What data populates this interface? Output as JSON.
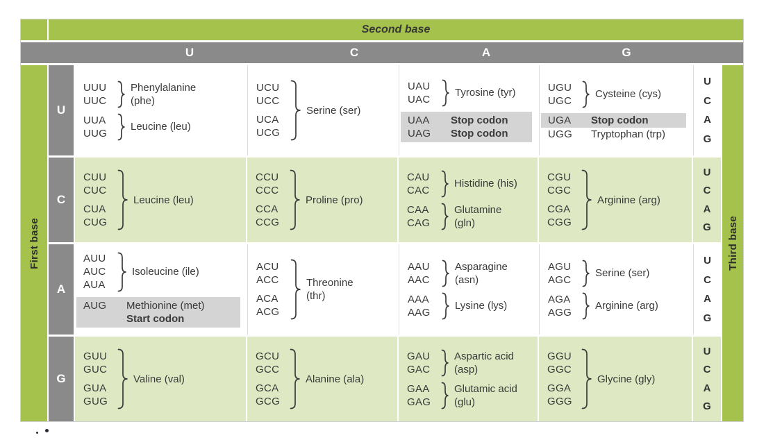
{
  "table": {
    "second_base_label": "Second base",
    "first_base_label": "First base",
    "third_base_label": "Third base",
    "column_headers": [
      "U",
      "C",
      "A",
      "G"
    ],
    "third_base_letters": [
      "U",
      "C",
      "A",
      "G"
    ],
    "colors": {
      "header_green": "#a5c24c",
      "cell_green": "#dee8c3",
      "header_gray": "#8a8a8a",
      "highlight_gray": "#d4d4d4",
      "text_dark": "#3a3a3a"
    },
    "rows": [
      {
        "label": "U",
        "shaded": false,
        "cells": [
          {
            "groups": [
              {
                "type": "brace",
                "codons": [
                  "UUU",
                  "UUC"
                ],
                "label_lines": [
                  "Phenylalanine",
                  "(phe)"
                ]
              },
              {
                "type": "brace",
                "codons": [
                  "UUA",
                  "UUG"
                ],
                "label_lines": [
                  "Leucine (leu)"
                ]
              }
            ]
          },
          {
            "groups": [
              {
                "type": "brace",
                "codons": [
                  "UCU",
                  "UCC",
                  "UCA",
                  "UCG"
                ],
                "label_lines": [
                  "Serine (ser)"
                ]
              }
            ]
          },
          {
            "groups": [
              {
                "type": "brace",
                "codons": [
                  "UAU",
                  "UAC"
                ],
                "label_lines": [
                  "Tyrosine (tyr)"
                ]
              },
              {
                "type": "plain",
                "highlight": "block",
                "rows": [
                  {
                    "codon": "UAA",
                    "label": "Stop codon",
                    "bold": true
                  },
                  {
                    "codon": "UAG",
                    "label": "Stop codon",
                    "bold": true
                  }
                ]
              }
            ]
          },
          {
            "groups": [
              {
                "type": "brace",
                "codons": [
                  "UGU",
                  "UGC"
                ],
                "label_lines": [
                  "Cysteine (cys)"
                ]
              },
              {
                "type": "plain",
                "highlight": "rows",
                "rows": [
                  {
                    "codon": "UGA",
                    "label": "Stop codon",
                    "bold": true,
                    "highlight": true
                  },
                  {
                    "codon": "UGG",
                    "label": "Tryptophan (trp)",
                    "bold": false,
                    "highlight": false
                  }
                ]
              }
            ]
          }
        ]
      },
      {
        "label": "C",
        "shaded": true,
        "cells": [
          {
            "groups": [
              {
                "type": "brace",
                "codons": [
                  "CUU",
                  "CUC",
                  "CUA",
                  "CUG"
                ],
                "label_lines": [
                  "Leucine (leu)"
                ]
              }
            ]
          },
          {
            "groups": [
              {
                "type": "brace",
                "codons": [
                  "CCU",
                  "CCC",
                  "CCA",
                  "CCG"
                ],
                "label_lines": [
                  "Proline (pro)"
                ]
              }
            ]
          },
          {
            "groups": [
              {
                "type": "brace",
                "codons": [
                  "CAU",
                  "CAC"
                ],
                "label_lines": [
                  "Histidine (his)"
                ]
              },
              {
                "type": "brace",
                "codons": [
                  "CAA",
                  "CAG"
                ],
                "label_lines": [
                  "Glutamine",
                  "(gln)"
                ]
              }
            ]
          },
          {
            "groups": [
              {
                "type": "brace",
                "codons": [
                  "CGU",
                  "CGC",
                  "CGA",
                  "CGG"
                ],
                "label_lines": [
                  "Arginine (arg)"
                ]
              }
            ]
          }
        ]
      },
      {
        "label": "A",
        "shaded": false,
        "cells": [
          {
            "groups": [
              {
                "type": "brace",
                "codons": [
                  "AUU",
                  "AUC",
                  "AUA"
                ],
                "label_lines": [
                  "Isoleucine (ile)"
                ]
              },
              {
                "type": "plain",
                "highlight": "block",
                "rows": [
                  {
                    "codon": "AUG",
                    "label": "Methionine (met)",
                    "bold": false
                  },
                  {
                    "codon": "",
                    "label": "Start codon",
                    "bold": true
                  }
                ]
              }
            ]
          },
          {
            "groups": [
              {
                "type": "brace",
                "codons": [
                  "ACU",
                  "ACC",
                  "ACA",
                  "ACG"
                ],
                "label_lines": [
                  "Threonine",
                  "(thr)"
                ]
              }
            ]
          },
          {
            "groups": [
              {
                "type": "brace",
                "codons": [
                  "AAU",
                  "AAC"
                ],
                "label_lines": [
                  "Asparagine",
                  "(asn)"
                ]
              },
              {
                "type": "brace",
                "codons": [
                  "AAA",
                  "AAG"
                ],
                "label_lines": [
                  "Lysine (lys)"
                ]
              }
            ]
          },
          {
            "groups": [
              {
                "type": "brace",
                "codons": [
                  "AGU",
                  "AGC"
                ],
                "label_lines": [
                  "Serine (ser)"
                ]
              },
              {
                "type": "brace",
                "codons": [
                  "AGA",
                  "AGG"
                ],
                "label_lines": [
                  "Arginine (arg)"
                ]
              }
            ]
          }
        ]
      },
      {
        "label": "G",
        "shaded": true,
        "cells": [
          {
            "groups": [
              {
                "type": "brace",
                "codons": [
                  "GUU",
                  "GUC",
                  "GUA",
                  "GUG"
                ],
                "label_lines": [
                  "Valine (val)"
                ]
              }
            ]
          },
          {
            "groups": [
              {
                "type": "brace",
                "codons": [
                  "GCU",
                  "GCC",
                  "GCA",
                  "GCG"
                ],
                "label_lines": [
                  "Alanine (ala)"
                ]
              }
            ]
          },
          {
            "groups": [
              {
                "type": "brace",
                "codons": [
                  "GAU",
                  "GAC"
                ],
                "label_lines": [
                  "Aspartic acid",
                  "(asp)"
                ]
              },
              {
                "type": "brace",
                "codons": [
                  "GAA",
                  "GAG"
                ],
                "label_lines": [
                  "Glutamic acid",
                  "(glu)"
                ]
              }
            ]
          },
          {
            "groups": [
              {
                "type": "brace",
                "codons": [
                  "GGU",
                  "GGC",
                  "GGA",
                  "GGG"
                ],
                "label_lines": [
                  "Glycine (gly)"
                ]
              }
            ]
          }
        ]
      }
    ]
  }
}
